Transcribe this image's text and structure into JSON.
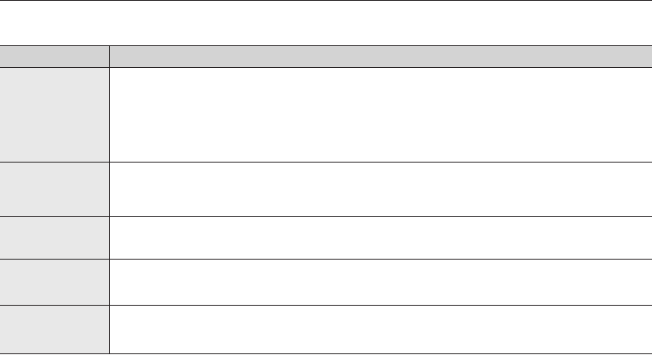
{
  "colors": {
    "rule": "#231f20",
    "header_bg": "#d3d3d3",
    "label_column_bg": "#e8e8e8",
    "body_bg": "#ffffff"
  }
}
